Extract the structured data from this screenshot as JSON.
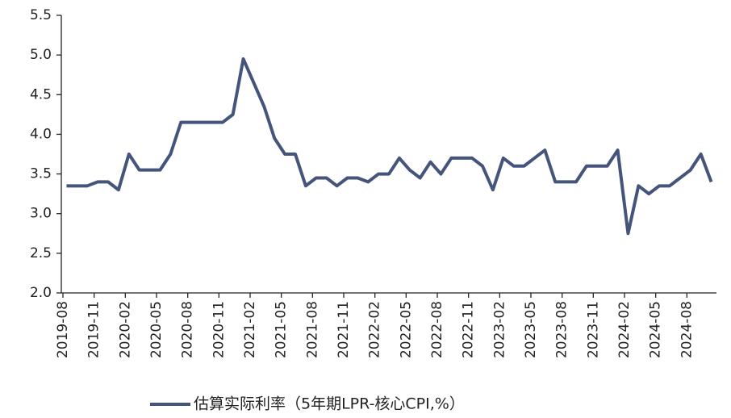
{
  "chart_data": {
    "type": "line",
    "categories": [
      "2019-08",
      null,
      null,
      "2019-11",
      null,
      null,
      "2020-02",
      null,
      null,
      "2020-05",
      null,
      null,
      "2020-08",
      null,
      null,
      "2020-11",
      null,
      null,
      "2021-02",
      null,
      null,
      "2021-05",
      null,
      null,
      "2021-08",
      null,
      null,
      "2021-11",
      null,
      null,
      "2022-02",
      null,
      null,
      "2022-05",
      null,
      null,
      "2022-08",
      null,
      null,
      "2022-11",
      null,
      null,
      "2023-02",
      null,
      null,
      "2023-05",
      null,
      null,
      "2023-08",
      null,
      null,
      "2023-11",
      null,
      null,
      "2024-02",
      null,
      null,
      "2024-05",
      null,
      null,
      "2024-08",
      null,
      null
    ],
    "series": [
      {
        "name": "估算实际利率（5年期LPR-核心CPI,%）",
        "color": "#44547a",
        "values": [
          3.35,
          3.35,
          3.35,
          3.4,
          3.4,
          3.3,
          3.75,
          3.55,
          3.55,
          3.55,
          3.75,
          4.15,
          4.15,
          4.15,
          4.15,
          4.15,
          4.25,
          4.95,
          4.65,
          4.35,
          3.95,
          3.75,
          3.75,
          3.35,
          3.45,
          3.45,
          3.35,
          3.45,
          3.45,
          3.4,
          3.5,
          3.5,
          3.7,
          3.55,
          3.45,
          3.65,
          3.5,
          3.7,
          3.7,
          3.7,
          3.6,
          3.3,
          3.7,
          3.6,
          3.6,
          3.7,
          3.8,
          3.4,
          3.4,
          3.4,
          3.6,
          3.6,
          3.6,
          3.8,
          2.75,
          3.35,
          3.25,
          3.35,
          3.35,
          3.45,
          3.55,
          3.75,
          3.4
        ]
      }
    ],
    "ylim": [
      2.0,
      5.5
    ],
    "yticks": [
      {
        "value": 2.0,
        "label": "2.0"
      },
      {
        "value": 2.5,
        "label": "2.5"
      },
      {
        "value": 3.0,
        "label": "3.0"
      },
      {
        "value": 3.5,
        "label": "3.5"
      },
      {
        "value": 4.0,
        "label": "4.0"
      },
      {
        "value": 4.5,
        "label": "4.5"
      },
      {
        "value": 5.0,
        "label": "5.0"
      },
      {
        "value": 5.5,
        "label": "5.5"
      }
    ],
    "grid": false,
    "legend": "bottom"
  }
}
